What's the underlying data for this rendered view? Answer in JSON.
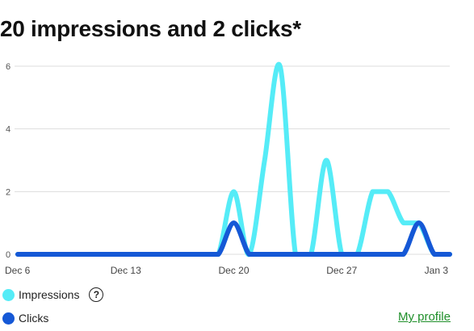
{
  "header": {
    "title": "20 impressions and 2 clicks*"
  },
  "colors": {
    "impressions": "#55ecf7",
    "clicks": "#1558d6",
    "grid": "#dddddd",
    "link": "#1f8f2a"
  },
  "legend": {
    "impressions_label": "Impressions",
    "clicks_label": "Clicks",
    "help_icon": "question-circle-icon",
    "help_glyph": "?"
  },
  "footer": {
    "profile_link": "My profile"
  },
  "chart_data": {
    "type": "line",
    "title": "20 impressions and 2 clicks*",
    "xlabel": "",
    "ylabel": "",
    "grid": true,
    "ylim": [
      0,
      6
    ],
    "yticks": [
      "0",
      "2",
      "4",
      "6"
    ],
    "x": [
      "Dec 6",
      "Dec 7",
      "Dec 8",
      "Dec 9",
      "Dec 10",
      "Dec 11",
      "Dec 12",
      "Dec 13",
      "Dec 14",
      "Dec 15",
      "Dec 16",
      "Dec 17",
      "Dec 18",
      "Dec 19",
      "Dec 20",
      "Dec 21",
      "Dec 22",
      "Dec 23",
      "Dec 24",
      "Dec 25",
      "Dec 26",
      "Dec 27",
      "Dec 28",
      "Dec 29",
      "Dec 30",
      "Dec 31",
      "Jan 1",
      "Jan 2",
      "Jan 3"
    ],
    "xtick_labels": [
      "Dec 6",
      "Dec 13",
      "Dec 20",
      "Dec 27",
      "Jan 3"
    ],
    "legend_position": "bottom-left",
    "series": [
      {
        "name": "Impressions",
        "values": [
          0,
          0,
          0,
          0,
          0,
          0,
          0,
          0,
          0,
          0,
          0,
          0,
          0,
          0,
          2,
          0,
          3,
          6,
          0,
          0,
          3,
          0,
          0,
          2,
          2,
          1,
          1,
          0,
          0
        ]
      },
      {
        "name": "Clicks",
        "values": [
          0,
          0,
          0,
          0,
          0,
          0,
          0,
          0,
          0,
          0,
          0,
          0,
          0,
          0,
          1,
          0,
          0,
          0,
          0,
          0,
          0,
          0,
          0,
          0,
          0,
          0,
          1,
          0,
          0
        ]
      }
    ]
  }
}
